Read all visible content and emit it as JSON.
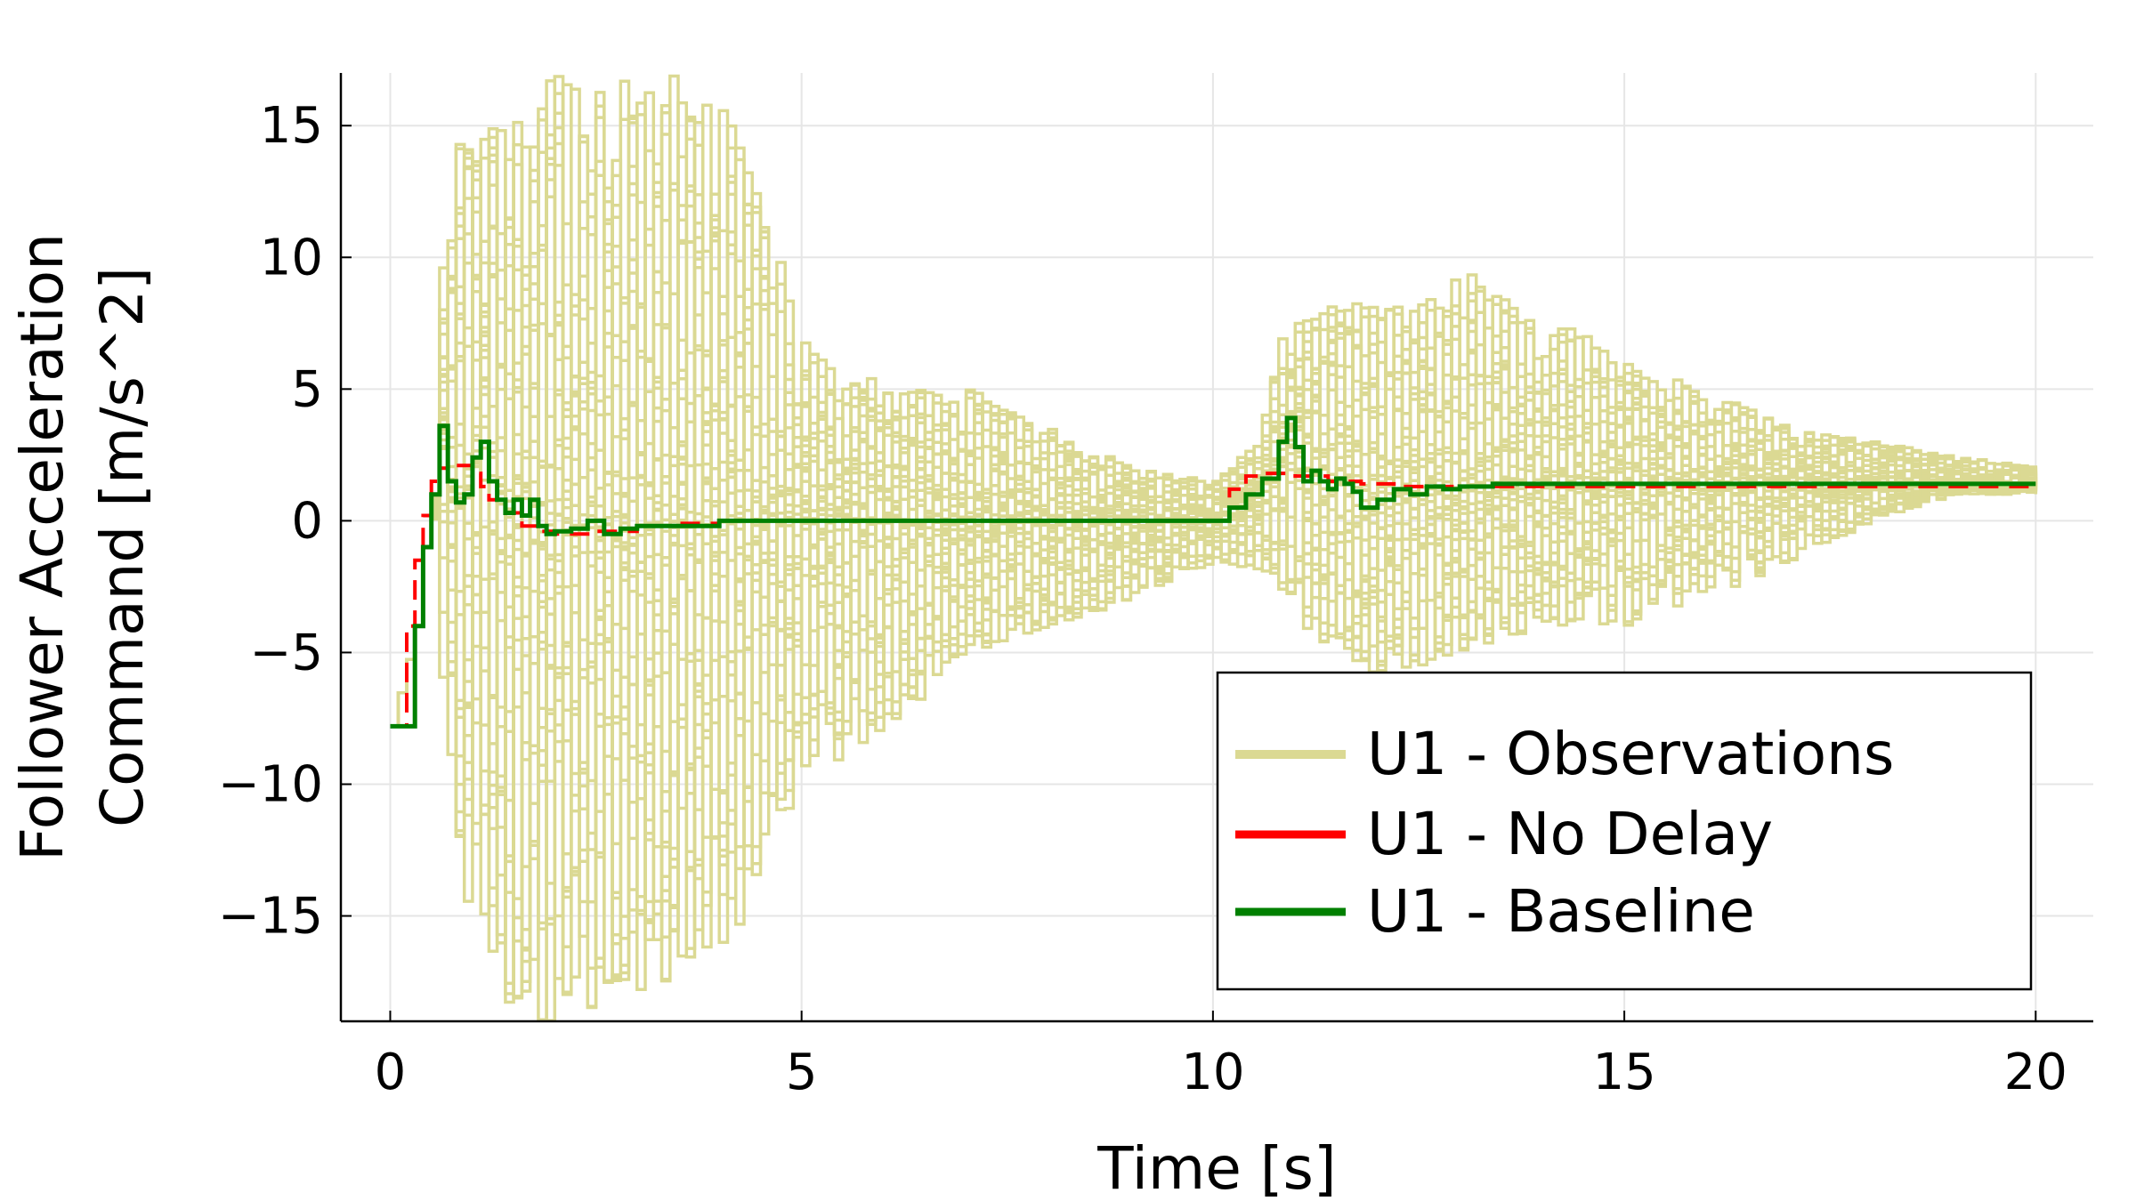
{
  "chart_data": {
    "type": "line",
    "xlabel": "Time [s]",
    "ylabel": "Follower Acceleration Command [m/s^2]",
    "ylabel_lines": [
      "Follower Acceleration",
      "Command [m/s^2]"
    ],
    "xlim": [
      -0.6,
      20.7
    ],
    "ylim": [
      -19,
      17
    ],
    "xticks": [
      0,
      5,
      10,
      15,
      20
    ],
    "yticks": [
      -15,
      -10,
      -5,
      0,
      5,
      10,
      15
    ],
    "ytick_labels": [
      "−15",
      "−10",
      "−5",
      "0",
      "5",
      "10",
      "15"
    ],
    "xtick_labels": [
      "0",
      "5",
      "10",
      "15",
      "20"
    ],
    "grid": true,
    "legend_position": "bottom-right",
    "series": [
      {
        "name": "U1 - Observations",
        "color": "#dbd993",
        "style": "step",
        "note_ensemble": "many overlapping noisy trajectories",
        "envelope_x": [
          0.0,
          0.5,
          0.6,
          0.7,
          1.0,
          1.5,
          2.0,
          3.0,
          4.0,
          5.0,
          6.0,
          7.0,
          8.0,
          9.0,
          10.0,
          10.5,
          10.8,
          11.0,
          11.5,
          12.0,
          12.5,
          13.0,
          14.0,
          15.0,
          16.0,
          17.0,
          18.0,
          19.0,
          20.0
        ],
        "envelope_upper": [
          0,
          0,
          10,
          14,
          15,
          16,
          17,
          17,
          17,
          7,
          5,
          5,
          3.5,
          2,
          1.5,
          3,
          7,
          7.5,
          8.5,
          8.5,
          8.5,
          9.5,
          8,
          6,
          5,
          3.5,
          3,
          2.5,
          2
        ],
        "envelope_lower": [
          0,
          0,
          -6,
          -10,
          -17,
          -19,
          -19,
          -18,
          -17,
          -10,
          -8,
          -5,
          -4,
          -3,
          -1.5,
          -2,
          -3,
          -4,
          -5,
          -6,
          -6,
          -5,
          -4,
          -4,
          -3,
          -1.5,
          0,
          1,
          1
        ]
      },
      {
        "name": "U1 - No Delay",
        "color": "#ff0000",
        "style": "dashed-step",
        "x": [
          0.0,
          0.2,
          0.3,
          0.4,
          0.5,
          0.6,
          0.7,
          0.8,
          1.0,
          1.1,
          1.2,
          1.4,
          1.6,
          1.8,
          2.0,
          2.5,
          3.0,
          3.5,
          4.0,
          5.0,
          7.0,
          10.0,
          10.2,
          10.4,
          10.6,
          10.8,
          11.0,
          11.4,
          11.8,
          12.2,
          13.0,
          14.0,
          16.0,
          18.0,
          20.0
        ],
        "y": [
          -7.8,
          -4.0,
          -1.5,
          0.2,
          1.5,
          2.0,
          2.2,
          2.1,
          1.8,
          1.3,
          0.8,
          0.3,
          -0.2,
          -0.4,
          -0.5,
          -0.4,
          -0.2,
          -0.1,
          0.0,
          0.0,
          0.0,
          0.0,
          1.2,
          1.7,
          1.8,
          1.8,
          1.7,
          1.5,
          1.4,
          1.3,
          1.3,
          1.3,
          1.3,
          1.3,
          1.3
        ]
      },
      {
        "name": "U1 - Baseline",
        "color": "#008000",
        "style": "step",
        "x": [
          0.0,
          0.3,
          0.4,
          0.5,
          0.6,
          0.7,
          0.8,
          0.9,
          1.0,
          1.1,
          1.2,
          1.3,
          1.4,
          1.5,
          1.6,
          1.7,
          1.8,
          1.9,
          2.0,
          2.2,
          2.4,
          2.6,
          2.8,
          3.0,
          3.5,
          4.0,
          4.5,
          5.0,
          7.0,
          10.0,
          10.2,
          10.4,
          10.6,
          10.8,
          10.9,
          11.0,
          11.1,
          11.2,
          11.3,
          11.4,
          11.5,
          11.6,
          11.7,
          11.8,
          12.0,
          12.2,
          12.4,
          12.6,
          12.8,
          13.0,
          13.4,
          14.0,
          15.0,
          16.0,
          18.0,
          20.0
        ],
        "y": [
          -7.8,
          -4.0,
          -1.0,
          1.0,
          3.6,
          1.5,
          0.7,
          1.0,
          2.4,
          3.0,
          1.5,
          0.8,
          0.3,
          0.8,
          0.2,
          0.8,
          -0.2,
          -0.5,
          -0.4,
          -0.3,
          0.0,
          -0.5,
          -0.3,
          -0.2,
          -0.2,
          0.0,
          0.0,
          0.0,
          0.0,
          0.0,
          0.5,
          1.0,
          1.6,
          3.0,
          3.9,
          2.8,
          1.5,
          1.9,
          1.5,
          1.2,
          1.6,
          1.4,
          1.1,
          0.5,
          0.8,
          1.2,
          1.0,
          1.3,
          1.2,
          1.3,
          1.4,
          1.4,
          1.4,
          1.4,
          1.4,
          1.4
        ]
      }
    ]
  }
}
